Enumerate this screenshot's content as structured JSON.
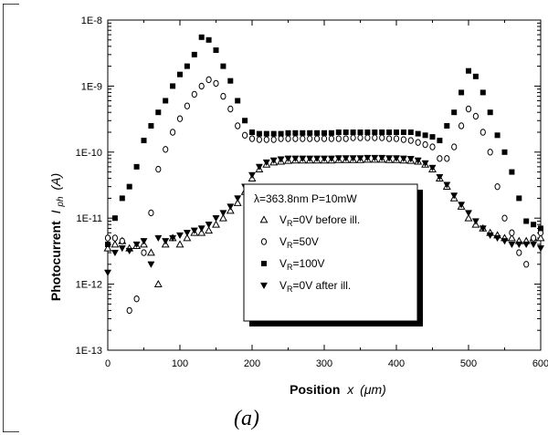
{
  "chart_data": {
    "type": "scatter",
    "xlabel": "Position",
    "xlabel_var": "x",
    "xlabel_unit": "(μm)",
    "ylabel": "Photocurrent",
    "ylabel_var": "I",
    "ylabel_sub": "ph",
    "ylabel_unit": "(A)",
    "xlim": [
      0,
      600
    ],
    "ylim": [
      1e-13,
      1e-08
    ],
    "yscale": "log",
    "xticks": [
      "0",
      "100",
      "200",
      "300",
      "400",
      "500",
      "600"
    ],
    "yticks": [
      "1E-13",
      "1E-12",
      "1E-11",
      "1E-10",
      "1E-9",
      "1E-8"
    ],
    "legend_title": "λ=363.8nm P=10mW",
    "legend_position": "center-right",
    "series": [
      {
        "name": "V_R=0V before ill.",
        "label_main": "V",
        "label_sub": "R",
        "label_rest": "=0V before ill.",
        "marker": "triangle-up-open",
        "x": [
          0,
          10,
          20,
          30,
          40,
          50,
          60,
          70,
          80,
          90,
          100,
          110,
          120,
          130,
          140,
          150,
          160,
          170,
          180,
          190,
          200,
          210,
          220,
          230,
          240,
          250,
          260,
          270,
          280,
          290,
          300,
          310,
          320,
          330,
          340,
          350,
          360,
          370,
          380,
          390,
          400,
          410,
          420,
          430,
          440,
          450,
          460,
          470,
          480,
          490,
          500,
          510,
          520,
          530,
          540,
          550,
          560,
          570,
          580,
          590,
          600
        ],
        "y": [
          3.5e-12,
          4e-12,
          4.5e-12,
          3.5e-12,
          3.8e-12,
          4e-12,
          3e-12,
          1e-12,
          4e-12,
          5e-12,
          4e-12,
          5e-12,
          6e-12,
          6e-12,
          6.5e-12,
          8e-12,
          1e-11,
          1.3e-11,
          1.7e-11,
          2.5e-11,
          4e-11,
          5.5e-11,
          6.5e-11,
          7e-11,
          7.2e-11,
          7.4e-11,
          7.5e-11,
          7.5e-11,
          7.5e-11,
          7.5e-11,
          7.5e-11,
          7.5e-11,
          7.6e-11,
          7.6e-11,
          7.6e-11,
          7.6e-11,
          7.7e-11,
          7.7e-11,
          7.7e-11,
          7.6e-11,
          7.6e-11,
          7.5e-11,
          7.4e-11,
          7.2e-11,
          6.5e-11,
          5.5e-11,
          4e-11,
          3e-11,
          2e-11,
          1.5e-11,
          1e-11,
          8e-12,
          7e-12,
          6e-12,
          5.5e-12,
          5e-12,
          5e-12,
          4.5e-12,
          4.5e-12,
          5e-12,
          5e-12
        ]
      },
      {
        "name": "V_R=50V",
        "label_main": "V",
        "label_sub": "R",
        "label_rest": "=50V",
        "marker": "circle-open",
        "x": [
          0,
          10,
          20,
          30,
          40,
          50,
          60,
          70,
          80,
          90,
          100,
          110,
          120,
          130,
          140,
          150,
          160,
          170,
          180,
          190,
          200,
          210,
          220,
          230,
          240,
          250,
          260,
          270,
          280,
          290,
          300,
          310,
          320,
          330,
          340,
          350,
          360,
          370,
          380,
          390,
          400,
          410,
          420,
          430,
          440,
          450,
          460,
          470,
          480,
          490,
          500,
          510,
          520,
          530,
          540,
          550,
          560,
          570,
          580,
          590,
          600
        ],
        "y": [
          5e-12,
          5e-12,
          4.5e-12,
          4e-13,
          6e-13,
          3e-12,
          1.2e-11,
          5.5e-11,
          1.1e-10,
          2e-10,
          3.2e-10,
          5e-10,
          7.5e-10,
          1e-09,
          1.25e-09,
          1.1e-09,
          7e-10,
          4.5e-10,
          2.5e-10,
          1.8e-10,
          1.6e-10,
          1.55e-10,
          1.55e-10,
          1.55e-10,
          1.6e-10,
          1.6e-10,
          1.6e-10,
          1.6e-10,
          1.6e-10,
          1.6e-10,
          1.6e-10,
          1.6e-10,
          1.6e-10,
          1.6e-10,
          1.65e-10,
          1.65e-10,
          1.65e-10,
          1.65e-10,
          1.65e-10,
          1.6e-10,
          1.6e-10,
          1.55e-10,
          1.5e-10,
          1.4e-10,
          1.3e-10,
          1.2e-10,
          8e-11,
          8e-11,
          1.2e-10,
          2.5e-10,
          4.5e-10,
          3.5e-10,
          2e-10,
          1e-10,
          3e-11,
          1e-11,
          6e-12,
          3e-12,
          2e-12,
          5e-12,
          6e-12
        ]
      },
      {
        "name": "V_R=100V",
        "label_main": "V",
        "label_sub": "R",
        "label_rest": "=100V",
        "marker": "square-filled",
        "x": [
          0,
          10,
          20,
          30,
          40,
          50,
          60,
          70,
          80,
          90,
          100,
          110,
          120,
          130,
          140,
          150,
          160,
          170,
          180,
          190,
          200,
          210,
          220,
          230,
          240,
          250,
          260,
          270,
          280,
          290,
          300,
          310,
          320,
          330,
          340,
          350,
          360,
          370,
          380,
          390,
          400,
          410,
          420,
          430,
          440,
          450,
          460,
          470,
          480,
          490,
          500,
          510,
          520,
          530,
          540,
          550,
          560,
          570,
          580,
          590,
          600
        ],
        "y": [
          4e-12,
          1e-11,
          2e-11,
          3e-11,
          6e-11,
          1.5e-10,
          2.5e-10,
          4e-10,
          6e-10,
          1e-09,
          1.5e-09,
          2e-09,
          3e-09,
          5.5e-09,
          5e-09,
          3.5e-09,
          2e-09,
          1.2e-09,
          6e-10,
          3e-10,
          2e-10,
          1.9e-10,
          1.9e-10,
          1.9e-10,
          1.9e-10,
          1.95e-10,
          1.95e-10,
          1.95e-10,
          1.95e-10,
          1.95e-10,
          1.95e-10,
          1.95e-10,
          2e-10,
          2e-10,
          2e-10,
          2e-10,
          2e-10,
          2e-10,
          2e-10,
          2e-10,
          2e-10,
          2e-10,
          2e-10,
          1.9e-10,
          1.8e-10,
          1.7e-10,
          1.5e-10,
          2.5e-10,
          4e-10,
          8e-10,
          1.7e-09,
          1.4e-09,
          8e-10,
          4e-10,
          1.8e-10,
          1e-10,
          5e-11,
          2e-11,
          9e-12,
          8e-12,
          7e-12
        ]
      },
      {
        "name": "V_R=0V after ill.",
        "label_main": "V",
        "label_sub": "R",
        "label_rest": "=0V after ill.",
        "marker": "triangle-down-filled",
        "x": [
          0,
          10,
          20,
          30,
          40,
          50,
          60,
          70,
          80,
          90,
          100,
          110,
          120,
          130,
          140,
          150,
          160,
          170,
          180,
          190,
          200,
          210,
          220,
          230,
          240,
          250,
          260,
          270,
          280,
          290,
          300,
          310,
          320,
          330,
          340,
          350,
          360,
          370,
          380,
          390,
          400,
          410,
          420,
          430,
          440,
          450,
          460,
          470,
          480,
          490,
          500,
          510,
          520,
          530,
          540,
          550,
          560,
          570,
          580,
          590,
          600
        ],
        "y": [
          1.5e-12,
          3e-12,
          3.5e-12,
          3.2e-12,
          4e-12,
          4.5e-12,
          2e-12,
          5e-12,
          4.5e-12,
          5e-12,
          5.5e-12,
          6e-12,
          6.5e-12,
          7e-12,
          8e-12,
          1e-11,
          1.2e-11,
          1.5e-11,
          2e-11,
          3e-11,
          4.5e-11,
          6e-11,
          7e-11,
          7.5e-11,
          7.8e-11,
          8e-11,
          8e-11,
          8e-11,
          8e-11,
          8e-11,
          8e-11,
          8e-11,
          8.1e-11,
          8.1e-11,
          8.1e-11,
          8.1e-11,
          8.2e-11,
          8.2e-11,
          8.2e-11,
          8.1e-11,
          8.1e-11,
          8e-11,
          7.9e-11,
          7.5e-11,
          6.8e-11,
          5.8e-11,
          4.2e-11,
          3.2e-11,
          2.2e-11,
          1.6e-11,
          1.2e-11,
          9e-12,
          7e-12,
          5.5e-12,
          5e-12,
          4.5e-12,
          4e-12,
          4e-12,
          4e-12,
          4e-12,
          3.5e-12
        ]
      }
    ]
  },
  "caption": "(a)"
}
